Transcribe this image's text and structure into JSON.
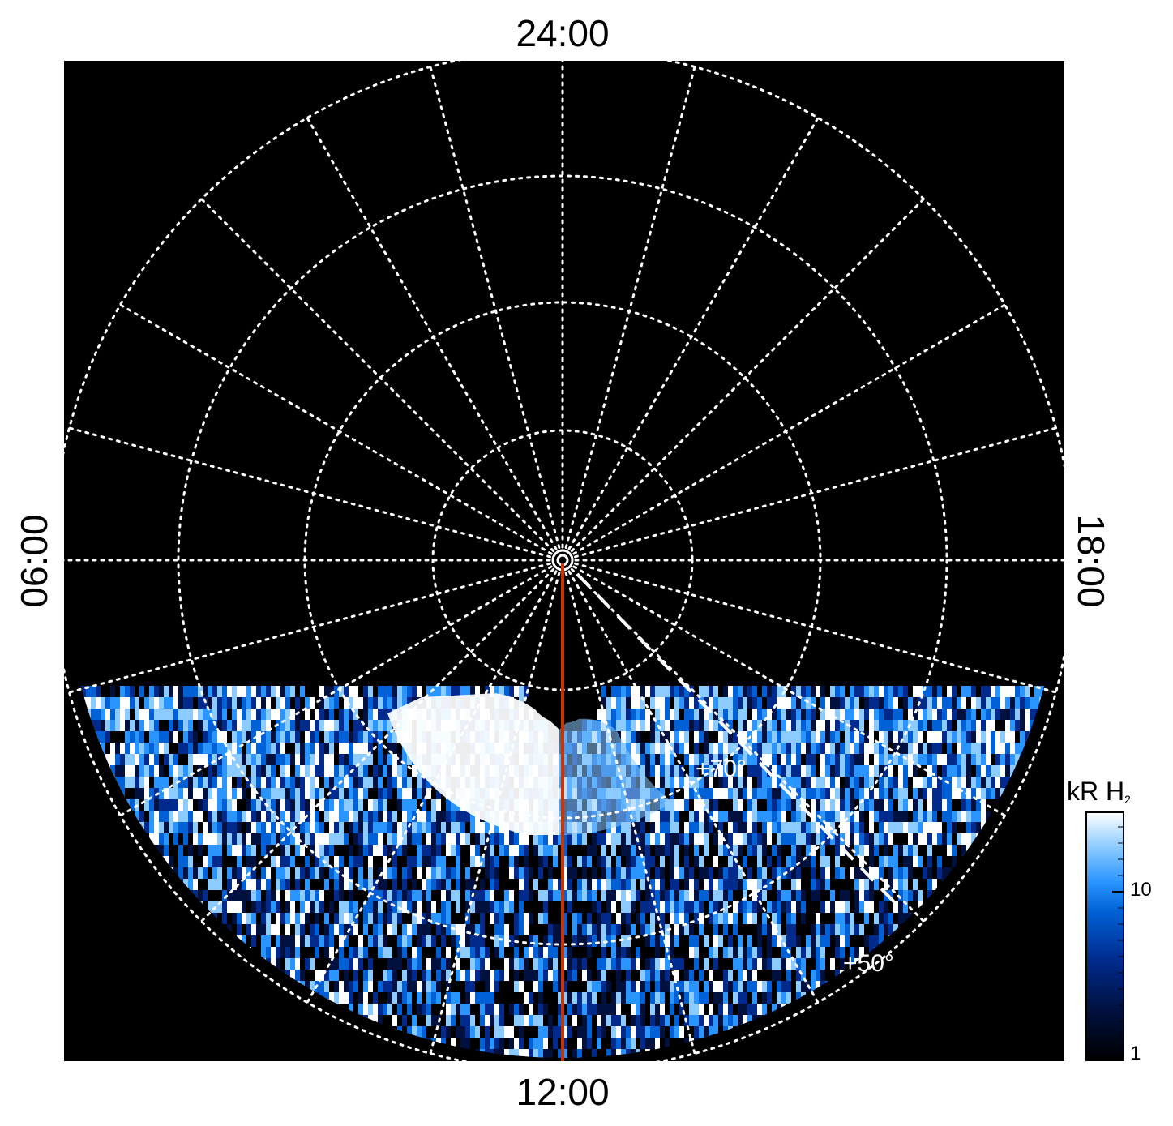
{
  "local_time_labels": {
    "top": "24:00",
    "bottom": "12:00",
    "left": "06:00",
    "right": "18:00"
  },
  "latitude_labels": {
    "inner": "+70°",
    "outer": "+50°"
  },
  "colorbar": {
    "title": "kR H",
    "title_subscript": "2",
    "scale": "log",
    "range": [
      1,
      25
    ],
    "tick_labels": [
      "10",
      "1"
    ],
    "colors": [
      "#000000",
      "#00113f",
      "#002a8c",
      "#0061d6",
      "#2a95ff",
      "#8ccbff",
      "#ffffff"
    ]
  },
  "grid": {
    "color": "#ffffff",
    "style": "dotted"
  },
  "colors": {
    "background": "#000000",
    "meridian_line": "#cc3300",
    "overlay_lines": "#ffffff"
  }
}
